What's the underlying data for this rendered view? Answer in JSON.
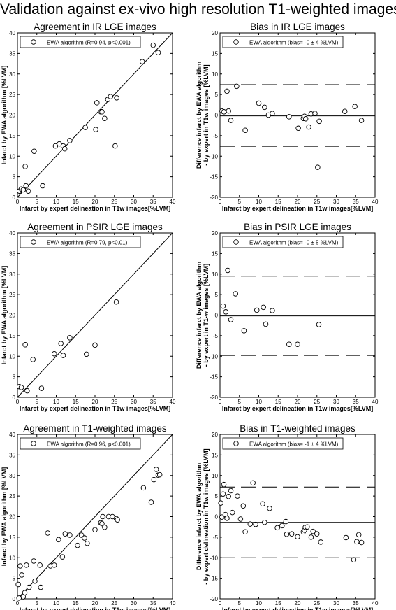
{
  "page_title": "Validation against ex-vivo high resolution T1-weighted images",
  "chart_data": [
    {
      "type": "scatter",
      "title": "Agreement in IR LGE images",
      "xlabel": "Infarct by expert delineation in T1w images[%LVM]",
      "ylabel": "Infarct by EWA algorithm [%LVM]",
      "xlim": [
        0,
        40
      ],
      "ylim": [
        0,
        40
      ],
      "xticks": [
        0,
        5,
        10,
        15,
        20,
        25,
        30,
        35,
        40
      ],
      "yticks": [
        0,
        5,
        10,
        15,
        20,
        25,
        30,
        35,
        40
      ],
      "legend": "EWA algorithm (R=0.94, p<0.001)",
      "legend_position": "top-left",
      "identity_line": true,
      "grid": false,
      "x": [
        0.5,
        1,
        1.5,
        2,
        2.2,
        2.8,
        4.3,
        6.5,
        9.8,
        10.8,
        11.8,
        12.2,
        13.5,
        17.5,
        20.2,
        20.5,
        21.5,
        21.8,
        22.5,
        23.3,
        24,
        25.2,
        25.6,
        32.2,
        35,
        36.3
      ],
      "y": [
        1.5,
        2,
        1.8,
        7.5,
        2.8,
        1.5,
        11.2,
        2.8,
        12.5,
        13,
        12.5,
        11.8,
        13.8,
        17,
        16.5,
        23,
        20.8,
        20.8,
        19.2,
        23.8,
        24.5,
        12.5,
        24.2,
        33,
        37,
        35.2
      ]
    },
    {
      "type": "scatter",
      "title": "Bias in IR LGE images",
      "xlabel": "Infarct by expert delineation in T1w images[%LVM]",
      "ylabel_lines": [
        "Difference infarct by EWA algorithm",
        "- by expert in T1w images [%LVM]"
      ],
      "xlim": [
        0,
        40
      ],
      "ylim": [
        -20,
        20
      ],
      "xticks": [
        0,
        5,
        10,
        15,
        20,
        25,
        30,
        35,
        40
      ],
      "yticks": [
        -20,
        -15,
        -10,
        -5,
        0,
        5,
        10,
        15,
        20
      ],
      "legend": "EWA algorithm (bias= -0 ± 4 %LVM)",
      "legend_position": "top-left",
      "mean_line": -0.2,
      "limit_lines": [
        7.4,
        -7.6
      ],
      "grid": false,
      "x": [
        0.5,
        1,
        1.8,
        2.2,
        2.8,
        4.3,
        6.5,
        10,
        11.5,
        12.5,
        13.5,
        17.8,
        20.2,
        21.5,
        21.8,
        22.1,
        22.9,
        23.5,
        24.5,
        25.2,
        25.6,
        32.2,
        34.8,
        36.5
      ],
      "y": [
        1,
        0.8,
        5.8,
        1,
        -1.3,
        7,
        -3.7,
        2.9,
        1.9,
        0,
        0.4,
        -0.4,
        -3.2,
        -0.8,
        -0.3,
        -0.9,
        -2.9,
        0.3,
        0.4,
        -12.7,
        -1.5,
        0.9,
        2.1,
        -1.3
      ]
    },
    {
      "type": "scatter",
      "title": "Agreement in PSIR LGE images",
      "xlabel": "Infarct by expert delineation in T1w images[%LVM]",
      "ylabel": "Infarct by EWA algorithm [%LVM]",
      "xlim": [
        0,
        40
      ],
      "ylim": [
        0,
        40
      ],
      "xticks": [
        0,
        5,
        10,
        15,
        20,
        25,
        30,
        35,
        40
      ],
      "yticks": [
        0,
        5,
        10,
        15,
        20,
        25,
        30,
        35,
        40
      ],
      "legend": "EWA algorithm (R=0.79, p<0.01)",
      "legend_position": "top-left",
      "identity_line": true,
      "grid": false,
      "x": [
        0.5,
        1,
        2,
        2.5,
        4,
        6.2,
        9.5,
        11.2,
        11.8,
        13.5,
        17.8,
        20,
        25.5
      ],
      "y": [
        2.6,
        2.4,
        12.8,
        1.6,
        9.2,
        2.2,
        10.6,
        13.1,
        10.2,
        14.5,
        10.5,
        12.7,
        23.2
      ]
    },
    {
      "type": "scatter",
      "title": "Bias in PSIR LGE images",
      "xlabel": "Infarct by expert delineation in T1w images[%LVM]",
      "ylabel_lines": [
        "Difference infarct by EWA algorithm",
        "- by expert in T1-w images [%LVM]"
      ],
      "xlim": [
        0,
        40
      ],
      "ylim": [
        -20,
        20
      ],
      "xticks": [
        0,
        5,
        10,
        15,
        20,
        25,
        30,
        35,
        40
      ],
      "yticks": [
        -20,
        -15,
        -10,
        -5,
        0,
        5,
        10,
        15,
        20
      ],
      "legend": "EWA algorithm (bias= -0 ± 5 %LVM)",
      "legend_position": "top-left",
      "mean_line": -0.2,
      "limit_lines": [
        9.5,
        -9.8
      ],
      "grid": false,
      "x": [
        0.8,
        1.5,
        2,
        2.8,
        4,
        6.2,
        9.5,
        11.2,
        11.8,
        13.5,
        17.8,
        20,
        25.5
      ],
      "y": [
        2.2,
        0.8,
        10.9,
        -1.1,
        5.2,
        -3.8,
        1.2,
        1.9,
        -2.2,
        1.1,
        -7.1,
        -7.1,
        -2.3
      ]
    },
    {
      "type": "scatter",
      "title": "Agreement in T1-weighted images",
      "xlabel": "Infarct by expert delineation in T1w images[%LVM]",
      "ylabel": "Infarct by EWA algorithm [%LVM]",
      "xlim": [
        0,
        40
      ],
      "ylim": [
        0,
        40
      ],
      "xticks": [
        0,
        5,
        10,
        15,
        20,
        25,
        30,
        35,
        40
      ],
      "yticks": [
        0,
        5,
        10,
        15,
        20,
        25,
        30,
        35,
        40
      ],
      "legend": "EWA algorithm (R=0.96, p<0.001)",
      "legend_position": "top-left",
      "identity_line": true,
      "grid": false,
      "x": [
        0.2,
        0.4,
        0.7,
        1.1,
        1.5,
        1.9,
        2.3,
        3,
        4.2,
        4.5,
        5.8,
        6,
        7.8,
        8.5,
        9.5,
        10.6,
        11.6,
        12.3,
        13.5,
        15.5,
        16.5,
        17.3,
        18,
        20,
        21.5,
        21.8,
        22,
        22.5,
        23.5,
        24.5,
        25.5,
        25.8,
        32.5,
        34.5,
        35.2,
        35.8,
        36.3,
        36.7
      ],
      "y": [
        3.5,
        0.2,
        8,
        5.8,
        0.5,
        1.5,
        8.2,
        2.8,
        9.2,
        4.3,
        8.2,
        2.8,
        16,
        8,
        8.2,
        14.4,
        10.2,
        15.8,
        15.5,
        13,
        15.5,
        14.8,
        13.5,
        16.8,
        18.5,
        18.3,
        20,
        17.4,
        20,
        20,
        19.5,
        19.2,
        27,
        23.5,
        29,
        31.5,
        30.1,
        30.2
      ]
    },
    {
      "type": "scatter",
      "title": "Bias in T1-weighted images",
      "xlabel": "Infarct by expert delineation in T1w images[%LVM]",
      "ylabel_lines": [
        "Difference infarct by EWA algorithm",
        "- by expert delineation in T1w images [%LVM]"
      ],
      "xlim": [
        0,
        40
      ],
      "ylim": [
        -20,
        20
      ],
      "xticks": [
        0,
        5,
        10,
        15,
        20,
        25,
        30,
        35,
        40
      ],
      "yticks": [
        -20,
        -15,
        -10,
        -5,
        0,
        5,
        10,
        15,
        20
      ],
      "legend": "EWA algorithm (bias= -1 ± 4 %LVM)",
      "legend_position": "top-left",
      "mean_line": -1.4,
      "limit_lines": [
        7.2,
        -10
      ],
      "grid": false,
      "x": [
        0.2,
        0.5,
        0.8,
        1,
        1.4,
        1.8,
        2.2,
        2.8,
        3.2,
        4.5,
        5.3,
        6,
        6.5,
        7.8,
        8.5,
        9.2,
        11,
        11.5,
        12.8,
        14.8,
        16,
        17,
        17.2,
        18.5,
        20,
        21.5,
        21.8,
        22,
        22.5,
        23.5,
        24,
        25,
        26,
        32.5,
        34.5,
        35.3,
        35.8,
        36.5
      ],
      "y": [
        3.3,
        -0.1,
        5.5,
        7.8,
        0.5,
        -0.4,
        4.9,
        6.3,
        1,
        5,
        -0.6,
        2.6,
        -3.7,
        -1.8,
        8.2,
        -1.9,
        3.1,
        -1.4,
        2,
        -2.7,
        -2.2,
        -1.2,
        -4.3,
        -4.2,
        -4.9,
        -3.7,
        -3.3,
        -2.6,
        -2.5,
        -5,
        -3.6,
        -4.2,
        -6.2,
        -5.1,
        -10.5,
        -6.1,
        -4.4,
        -6.3
      ]
    }
  ]
}
